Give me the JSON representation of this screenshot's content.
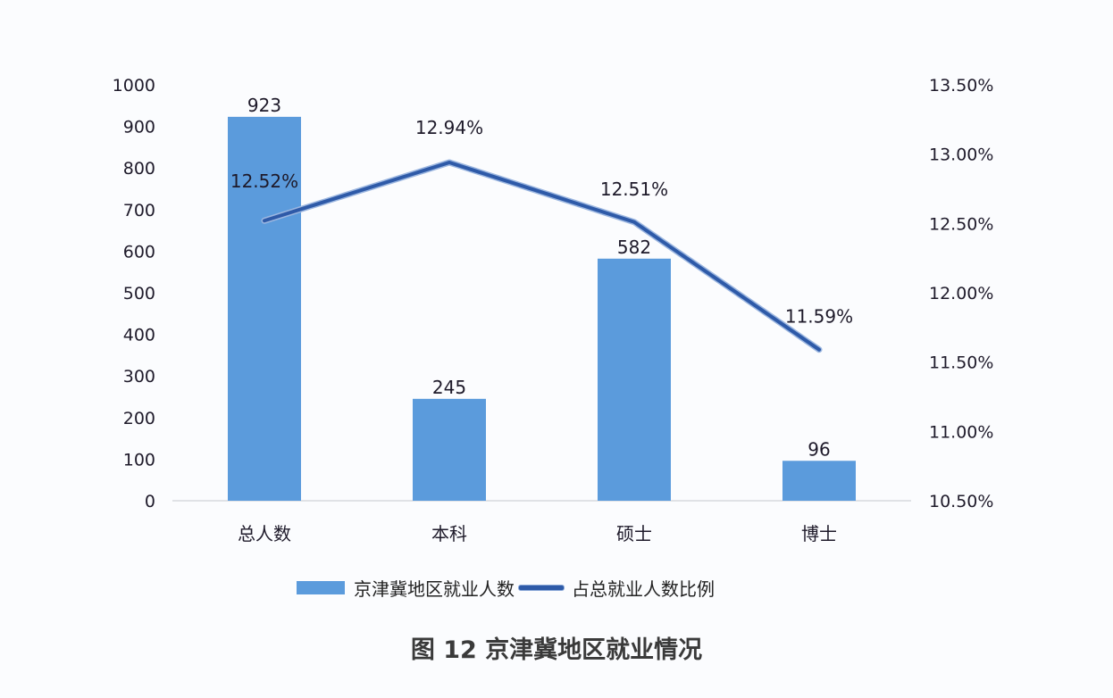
{
  "chart_data": {
    "type": "bar+line",
    "title": "图 12 京津冀地区就业情况",
    "categories": [
      "总人数",
      "本科",
      "硕士",
      "博士"
    ],
    "series": [
      {
        "name": "京津冀地区就业人数",
        "type": "bar",
        "axis": "left",
        "values": [
          923,
          245,
          582,
          96
        ],
        "labels": [
          "923",
          "245",
          "582",
          "96"
        ],
        "color": "#5b9bdc"
      },
      {
        "name": "占总就业人数比例",
        "type": "line",
        "axis": "right",
        "values": [
          12.52,
          12.94,
          12.51,
          11.59
        ],
        "labels": [
          "12.52%",
          "12.94%",
          "12.51%",
          "11.59%"
        ],
        "color": "#2e5aa8"
      }
    ],
    "left_axis": {
      "ylim": [
        0,
        1000
      ],
      "ticks": [
        "0",
        "100",
        "200",
        "300",
        "400",
        "500",
        "600",
        "700",
        "800",
        "900",
        "1000"
      ]
    },
    "right_axis": {
      "ylim": [
        10.5,
        13.5
      ],
      "ticks": [
        "10.50%",
        "11.00%",
        "11.50%",
        "12.00%",
        "12.50%",
        "13.00%",
        "13.50%"
      ]
    },
    "grid": false,
    "legend_position": "bottom"
  },
  "legend": {
    "bar_label": "京津冀地区就业人数",
    "line_label": "占总就业人数比例"
  },
  "caption": "图 12 京津冀地区就业情况"
}
